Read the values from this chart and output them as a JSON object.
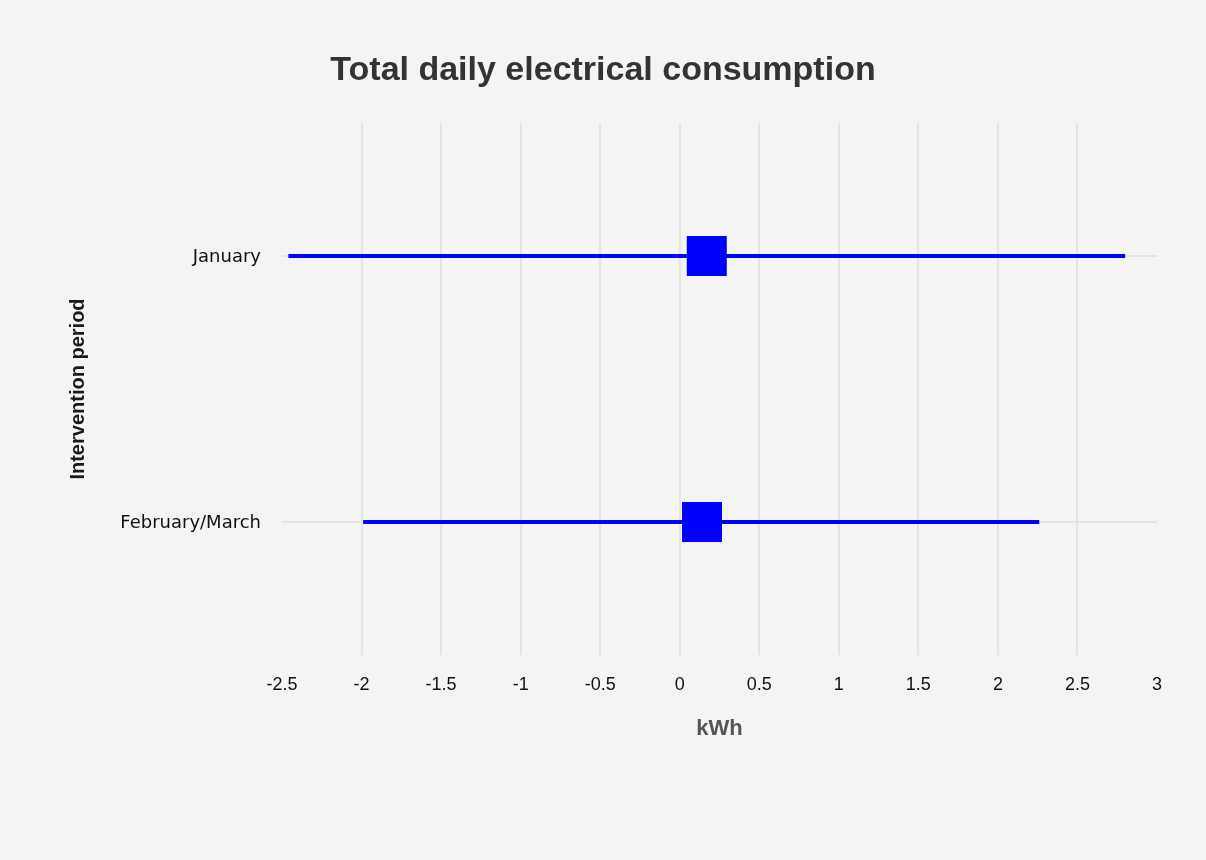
{
  "chart_data": {
    "type": "scatter",
    "orientation": "horizontal",
    "title": "Total daily electrical consumption",
    "xlabel": "kWh",
    "ylabel": "Intervention period",
    "categories": [
      "January",
      "February/March"
    ],
    "values": [
      0.17,
      0.14
    ],
    "errors": [
      [
        -2.46,
        2.8
      ],
      [
        -1.99,
        2.26
      ]
    ],
    "color": "#0000ff",
    "marker": "square",
    "xlim": [
      -2.5,
      3
    ],
    "xticks": [
      -2.5,
      -2,
      -1.5,
      -1,
      -0.5,
      0,
      0.5,
      1,
      1.5,
      2,
      2.5,
      3
    ],
    "grid": true
  }
}
